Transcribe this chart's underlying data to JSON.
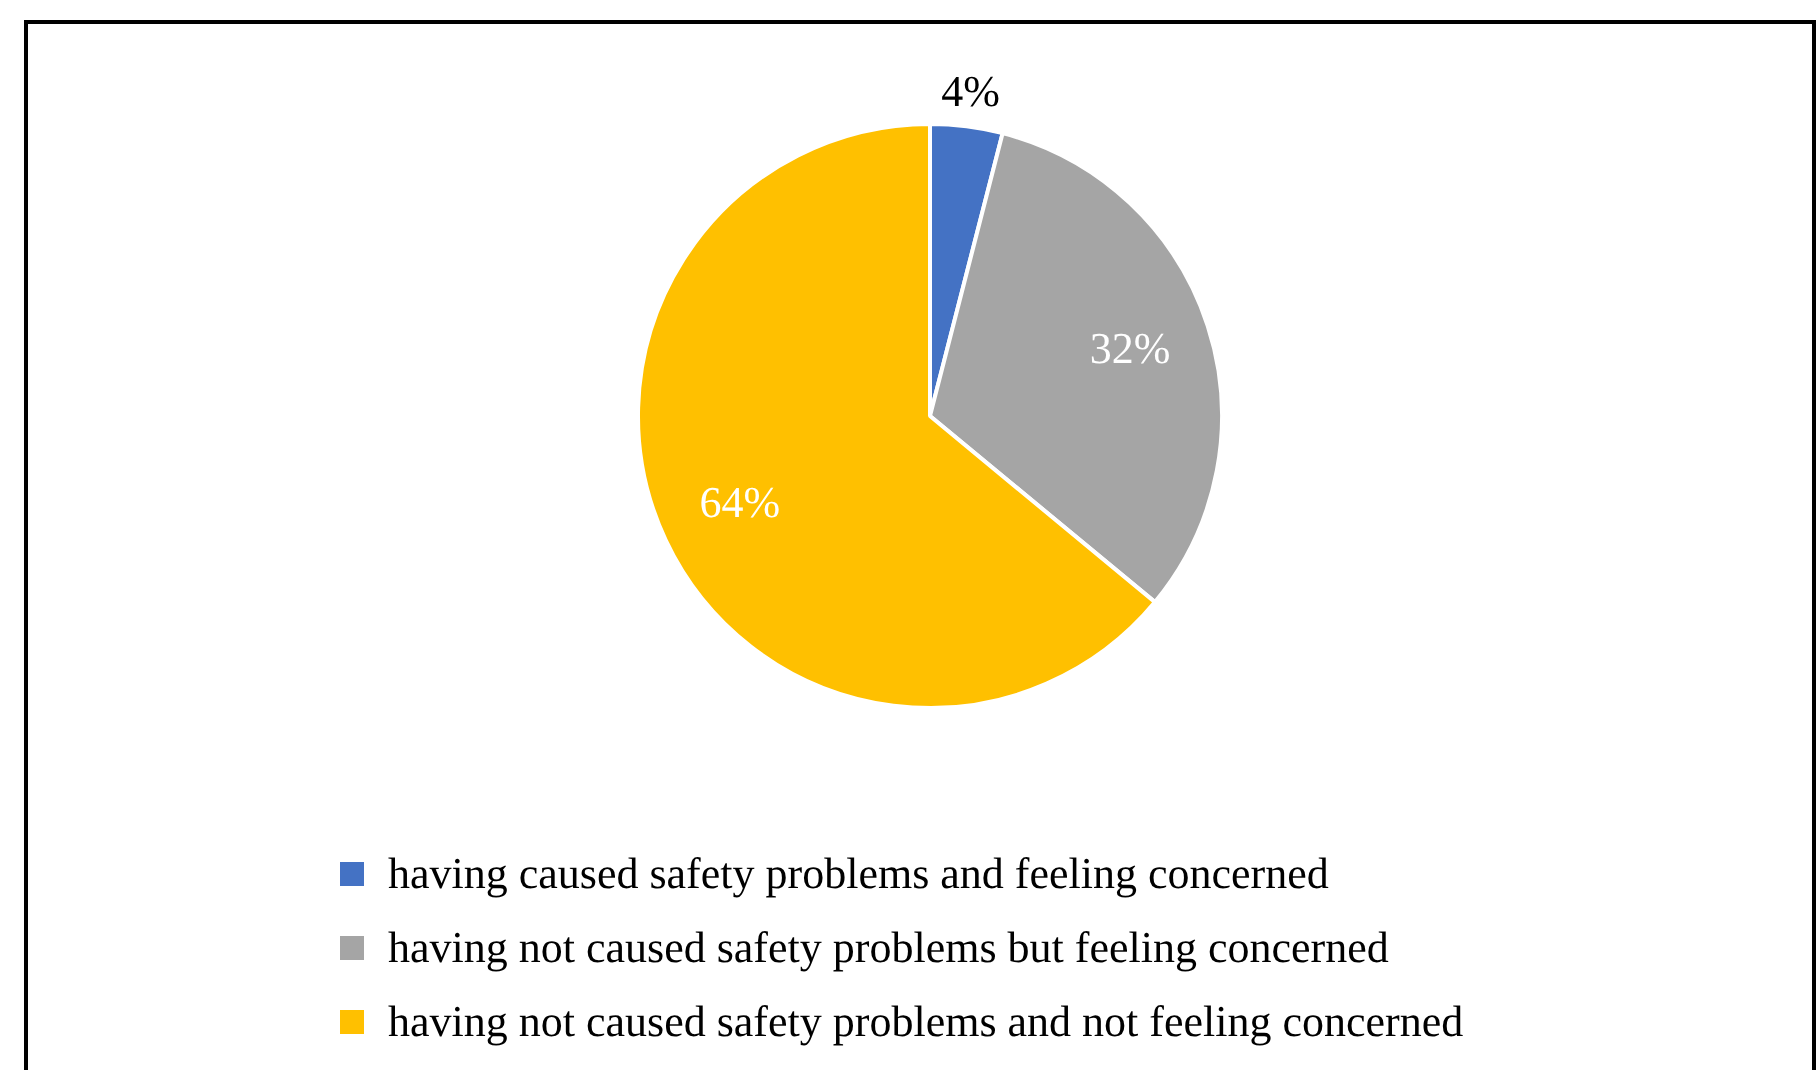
{
  "chart_data": {
    "type": "pie",
    "categories": [
      "having caused safety problems and feeling concerned",
      "having not caused safety problems but feeling concerned",
      "having not caused safety problems and not feeling concerned"
    ],
    "values": [
      4,
      32,
      64
    ],
    "colors": [
      "#4472c4",
      "#a5a5a5",
      "#ffc000"
    ],
    "value_labels": [
      "4%",
      "32%",
      "64%"
    ],
    "legend": "bottom"
  }
}
